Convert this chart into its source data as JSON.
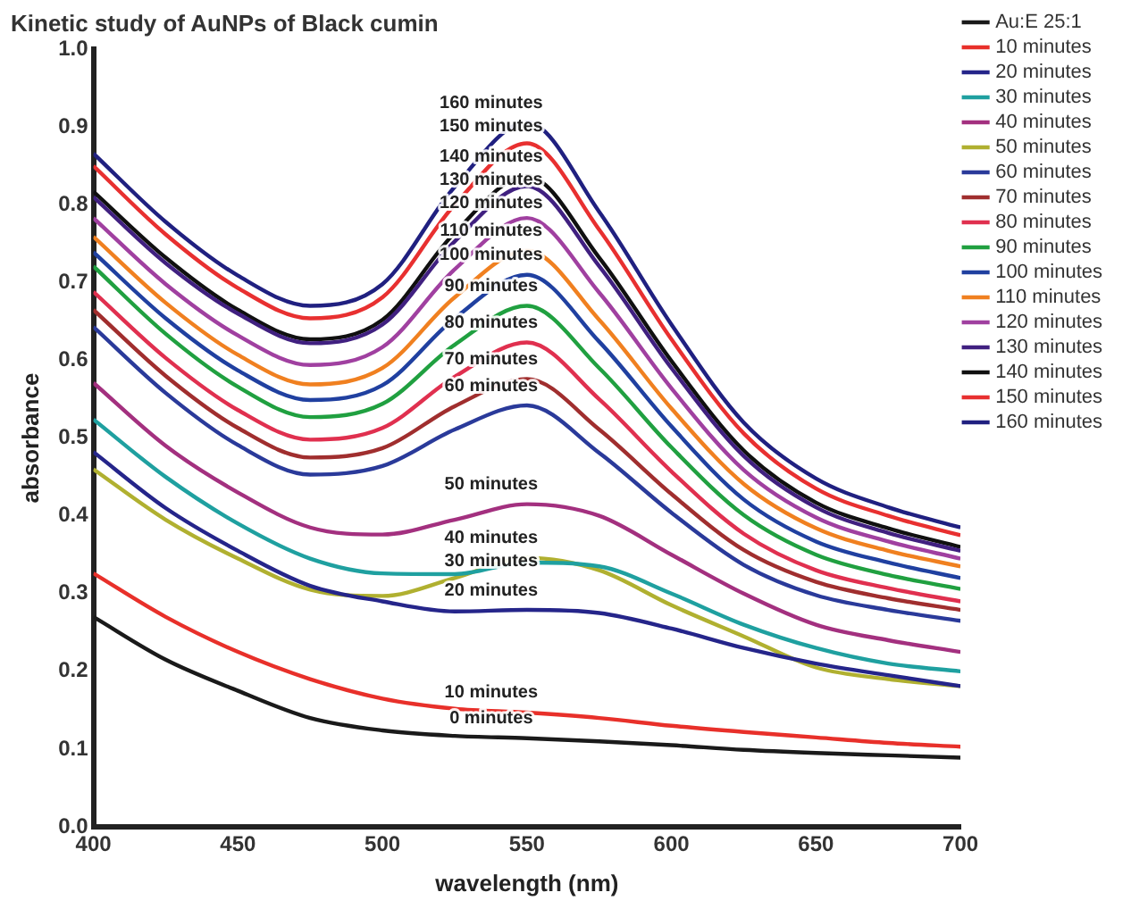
{
  "chart_data": {
    "type": "line",
    "title": "Kinetic study of AuNPs of Black cumin",
    "xlabel": "wavelength (nm)",
    "ylabel": "absorbance",
    "x": [
      400,
      425,
      450,
      475,
      500,
      525,
      550,
      575,
      600,
      625,
      650,
      675,
      700
    ],
    "xlim": [
      400,
      700
    ],
    "xticks": [
      400,
      450,
      500,
      550,
      600,
      650,
      700
    ],
    "ylim": [
      0,
      1
    ],
    "yticks": [
      {
        "value": 0,
        "label": "0.0"
      },
      0.1,
      0.2,
      0.3,
      0.4,
      0.5,
      0.6,
      0.7,
      0.8,
      0.9,
      {
        "value": 1,
        "label": "1.0"
      }
    ],
    "grid": false,
    "legend": "top right",
    "marker": "none",
    "line_style": "solid",
    "series": [
      {
        "name": "Au:E 25:1",
        "color": "#1a1a1a",
        "values": [
          0.27,
          0.215,
          0.175,
          0.14,
          0.124,
          0.117,
          0.114,
          0.11,
          0.105,
          0.099,
          0.095,
          0.092,
          0.089
        ]
      },
      {
        "name": "10 minutes",
        "color": "#e8302a",
        "values": [
          0.326,
          0.27,
          0.225,
          0.19,
          0.165,
          0.152,
          0.147,
          0.14,
          0.13,
          0.122,
          0.115,
          0.108,
          0.103
        ]
      },
      {
        "name": "20 minutes",
        "color": "#25258a",
        "values": [
          0.482,
          0.41,
          0.355,
          0.31,
          0.29,
          0.277,
          0.279,
          0.275,
          0.255,
          0.23,
          0.21,
          0.195,
          0.181
        ]
      },
      {
        "name": "30 minutes",
        "color": "#1fa0a0",
        "values": [
          0.524,
          0.45,
          0.39,
          0.345,
          0.326,
          0.325,
          0.34,
          0.335,
          0.3,
          0.26,
          0.23,
          0.21,
          0.2
        ]
      },
      {
        "name": "40 minutes",
        "color": "#a3307f",
        "values": [
          0.571,
          0.49,
          0.43,
          0.385,
          0.376,
          0.395,
          0.415,
          0.4,
          0.35,
          0.3,
          0.26,
          0.24,
          0.225
        ]
      },
      {
        "name": "50 minutes",
        "color": "#b0b030",
        "values": [
          0.46,
          0.395,
          0.345,
          0.305,
          0.297,
          0.32,
          0.346,
          0.33,
          0.285,
          0.245,
          0.205,
          0.19,
          0.181
        ]
      },
      {
        "name": "60 minutes",
        "color": "#2a3a9a",
        "values": [
          0.643,
          0.558,
          0.491,
          0.453,
          0.464,
          0.511,
          0.542,
          0.481,
          0.404,
          0.337,
          0.298,
          0.279,
          0.265
        ]
      },
      {
        "name": "70 minutes",
        "color": "#a02e2e",
        "values": [
          0.665,
          0.58,
          0.513,
          0.475,
          0.487,
          0.541,
          0.576,
          0.511,
          0.428,
          0.356,
          0.315,
          0.294,
          0.279
        ]
      },
      {
        "name": "80 minutes",
        "color": "#e0304f",
        "values": [
          0.688,
          0.603,
          0.536,
          0.498,
          0.513,
          0.579,
          0.623,
          0.55,
          0.457,
          0.377,
          0.33,
          0.307,
          0.29
        ]
      },
      {
        "name": "90 minutes",
        "color": "#20a040",
        "values": [
          0.721,
          0.634,
          0.566,
          0.527,
          0.544,
          0.62,
          0.67,
          0.59,
          0.488,
          0.401,
          0.35,
          0.324,
          0.306
        ]
      },
      {
        "name": "100 minutes",
        "color": "#2040a0",
        "values": [
          0.739,
          0.654,
          0.587,
          0.549,
          0.568,
          0.654,
          0.71,
          0.624,
          0.515,
          0.421,
          0.367,
          0.34,
          0.32
        ]
      },
      {
        "name": "110 minutes",
        "color": "#f08020",
        "values": [
          0.759,
          0.674,
          0.607,
          0.569,
          0.59,
          0.681,
          0.741,
          0.652,
          0.538,
          0.441,
          0.384,
          0.355,
          0.335
        ]
      },
      {
        "name": "120 minutes",
        "color": "#a040a0",
        "values": [
          0.783,
          0.698,
          0.632,
          0.594,
          0.617,
          0.717,
          0.783,
          0.687,
          0.564,
          0.459,
          0.398,
          0.367,
          0.345
        ]
      },
      {
        "name": "130 minutes",
        "color": "#402080",
        "values": [
          0.81,
          0.725,
          0.66,
          0.622,
          0.646,
          0.753,
          0.824,
          0.721,
          0.59,
          0.477,
          0.411,
          0.378,
          0.355
        ]
      },
      {
        "name": "140 minutes",
        "color": "#101010",
        "values": [
          0.817,
          0.732,
          0.665,
          0.627,
          0.652,
          0.764,
          0.837,
          0.732,
          0.599,
          0.484,
          0.417,
          0.384,
          0.36
        ]
      },
      {
        "name": "150 minutes",
        "color": "#e83030",
        "values": [
          0.85,
          0.762,
          0.693,
          0.654,
          0.681,
          0.8,
          0.879,
          0.768,
          0.627,
          0.506,
          0.435,
          0.4,
          0.375
        ]
      },
      {
        "name": "160 minutes",
        "color": "#202080",
        "values": [
          0.866,
          0.778,
          0.709,
          0.67,
          0.698,
          0.823,
          0.906,
          0.791,
          0.646,
          0.52,
          0.448,
          0.411,
          0.385
        ]
      }
    ],
    "annotations": [
      "160 minutes",
      "150 minutes",
      "140 minutes",
      "130 minutes",
      "120 minutes",
      "110 minutes",
      "100 minutes",
      "90 minutes",
      "80 minutes",
      "70 minutes",
      "60 minutes",
      "50 minutes",
      "40 minutes",
      "30 minutes",
      "20 minutes",
      "10 minutes",
      "0 minutes"
    ]
  }
}
